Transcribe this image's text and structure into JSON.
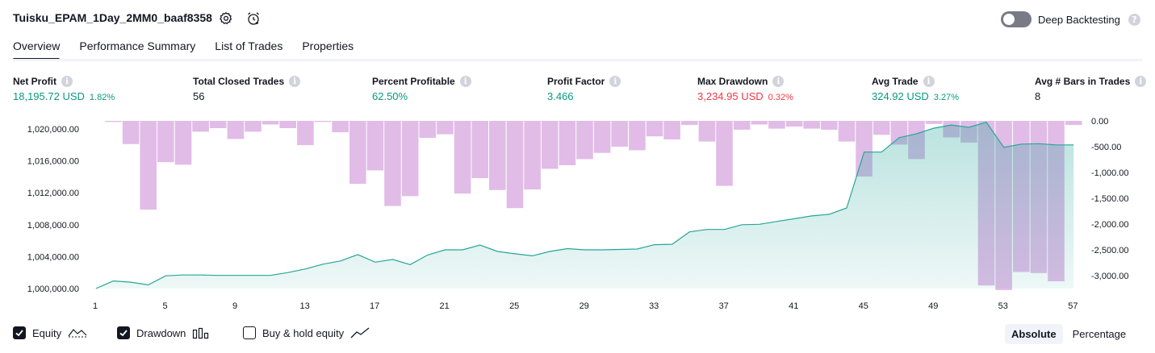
{
  "header": {
    "title": "Tuisku_EPAM_1Day_2MM0_baaf8358",
    "deep_backtesting_label": "Deep Backtesting",
    "deep_backtesting_on": false,
    "help_glyph": "?"
  },
  "tabs": [
    {
      "label": "Overview",
      "active": true
    },
    {
      "label": "Performance Summary",
      "active": false
    },
    {
      "label": "List of Trades",
      "active": false
    },
    {
      "label": "Properties",
      "active": false
    }
  ],
  "metrics": {
    "net_profit": {
      "label": "Net Profit",
      "value": "18,195.72 USD",
      "pct": "1.82%"
    },
    "total_closed_trades": {
      "label": "Total Closed Trades",
      "value": "56"
    },
    "percent_profitable": {
      "label": "Percent Profitable",
      "value": "62.50%"
    },
    "profit_factor": {
      "label": "Profit Factor",
      "value": "3.466"
    },
    "max_drawdown": {
      "label": "Max Drawdown",
      "value": "3,234.95 USD",
      "pct": "0.32%"
    },
    "avg_trade": {
      "label": "Avg Trade",
      "value": "324.92 USD",
      "pct": "3.27%"
    },
    "avg_bars": {
      "label": "Avg # Bars in Trades",
      "value": "8"
    }
  },
  "info_glyph": "i",
  "chart_data": {
    "type": "area",
    "x": [
      1,
      2,
      3,
      4,
      5,
      6,
      7,
      8,
      9,
      10,
      11,
      12,
      13,
      14,
      15,
      16,
      17,
      18,
      19,
      20,
      21,
      22,
      23,
      24,
      25,
      26,
      27,
      28,
      29,
      30,
      31,
      32,
      33,
      34,
      35,
      36,
      37,
      38,
      39,
      40,
      41,
      42,
      43,
      44,
      45,
      46,
      47,
      48,
      49,
      50,
      51,
      52,
      53,
      54,
      55,
      56,
      57
    ],
    "x_ticks": [
      "1",
      "5",
      "9",
      "13",
      "17",
      "21",
      "25",
      "29",
      "33",
      "37",
      "41",
      "45",
      "49",
      "53",
      "57"
    ],
    "series": [
      {
        "name": "Equity",
        "axis": "left",
        "color": "#26a69a",
        "values": [
          1000000,
          1000950,
          1000800,
          1000450,
          1001600,
          1001700,
          1001700,
          1001650,
          1001650,
          1001650,
          1001650,
          1002000,
          1002450,
          1003050,
          1003450,
          1004250,
          1003300,
          1003650,
          1003000,
          1004200,
          1004850,
          1004850,
          1005450,
          1004650,
          1004350,
          1004100,
          1004650,
          1005000,
          1004850,
          1004850,
          1004900,
          1004950,
          1005500,
          1005550,
          1007100,
          1007400,
          1007400,
          1008000,
          1008050,
          1008400,
          1008750,
          1009100,
          1009300,
          1010100,
          1017100,
          1017100,
          1018900,
          1019400,
          1020100,
          1020500,
          1020200,
          1020850,
          1017700,
          1018100,
          1018150,
          1018000,
          1018000
        ]
      },
      {
        "name": "Drawdown",
        "axis": "right",
        "color": "#ce93d8",
        "values": [
          0,
          -20,
          -450,
          -1720,
          -800,
          -850,
          -210,
          -140,
          -350,
          -210,
          -70,
          -140,
          -470,
          -20,
          -220,
          -1220,
          -960,
          -1650,
          -1460,
          -330,
          -260,
          -1410,
          -1110,
          -1340,
          -1690,
          -1330,
          -930,
          -860,
          -740,
          -620,
          -500,
          -570,
          -300,
          -360,
          -80,
          -400,
          -1260,
          -170,
          -70,
          -150,
          -110,
          -150,
          -170,
          -400,
          -1080,
          -270,
          -460,
          -740,
          -60,
          -320,
          -420,
          -3190,
          -3280,
          -2930,
          -2950,
          -3110,
          -80
        ]
      }
    ],
    "left_ticks": [
      "1,000,000.00",
      "1,004,000.00",
      "1,008,000.00",
      "1,012,000.00",
      "1,016,000.00",
      "1,020,000.00"
    ],
    "left_range": [
      999000,
      1021000
    ],
    "right_ticks": [
      "0.00",
      "-500.00",
      "-1,000.00",
      "-1,500.00",
      "-2,000.00",
      "-2,500.00",
      "-3,000.00"
    ],
    "right_range": [
      -3220,
      0
    ],
    "grid": false
  },
  "legend": {
    "equity": {
      "label": "Equity",
      "checked": true
    },
    "drawdown": {
      "label": "Drawdown",
      "checked": true
    },
    "buy_hold": {
      "label": "Buy & hold equity",
      "checked": false
    }
  },
  "scale_toggle": {
    "absolute": "Absolute",
    "percentage": "Percentage",
    "active": "absolute"
  },
  "colors": {
    "positive": "#089981",
    "negative": "#f23645",
    "equity_line": "#26a69a",
    "drawdown_bar": "#ce93d8"
  },
  "icons": [
    "gear-icon",
    "alarm-clock-icon",
    "help-icon",
    "info-icon",
    "check-icon",
    "equity-line-icon",
    "drawdown-bars-icon",
    "buy-hold-line-icon"
  ]
}
